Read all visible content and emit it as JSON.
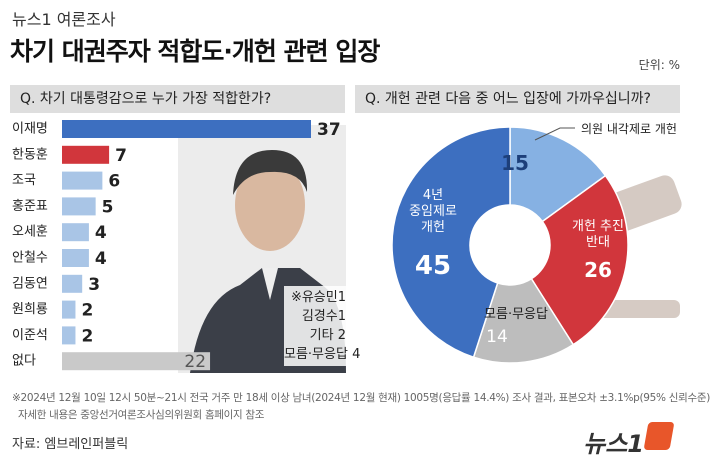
{
  "header": {
    "kicker": "뉴스1 여론조사",
    "title": "차기 대권주자 적합도·개헌 관련 입장",
    "unit": "단위: %"
  },
  "chart_data": [
    {
      "type": "bar",
      "title": "Q. 차기 대통령감으로 누가 가장 적합한가?",
      "categories": [
        "이재명",
        "한동훈",
        "조국",
        "홍준표",
        "오세훈",
        "안철수",
        "김동연",
        "원희룡",
        "이준석",
        "없다"
      ],
      "values": [
        37,
        7,
        6,
        5,
        4,
        4,
        3,
        2,
        2,
        22
      ],
      "colors": [
        "#3d6fc0",
        "#d1363c",
        "#a9c5e6",
        "#a9c5e6",
        "#a9c5e6",
        "#a9c5e6",
        "#a9c5e6",
        "#a9c5e6",
        "#a9c5e6",
        "#c9c9c9"
      ],
      "annotations": [
        "※유승민1",
        "김경수1",
        "기타 2",
        "모름·무응답 4"
      ]
    },
    {
      "type": "pie",
      "title": "Q. 개헌 관련 다음 중 어느 입장에 가까우십니까?",
      "categories": [
        "의원 내각제로 개헌",
        "개헌 추진\n반대",
        "모름·무응답",
        "4년\n중임제로\n개헌"
      ],
      "values": [
        15,
        26,
        14,
        45
      ],
      "colors": [
        "#86b1e3",
        "#d1363c",
        "#bdbdbd",
        "#3d6fc0"
      ]
    }
  ],
  "footnote": [
    "※2024년 12월 10일 12시 50분~21시 전국 거주 만 18세 이상 남녀(2024년 12월 현재) 1005명(응답률 14.4%) 조사 결과, 표본오차 ±3.1%p(95% 신뢰수준)",
    "자세한 내용은 중앙선거여론조사심의위원회 홈페이지 참조"
  ],
  "source": "자료: 엠브레인퍼블릭",
  "logo": "뉴스1"
}
